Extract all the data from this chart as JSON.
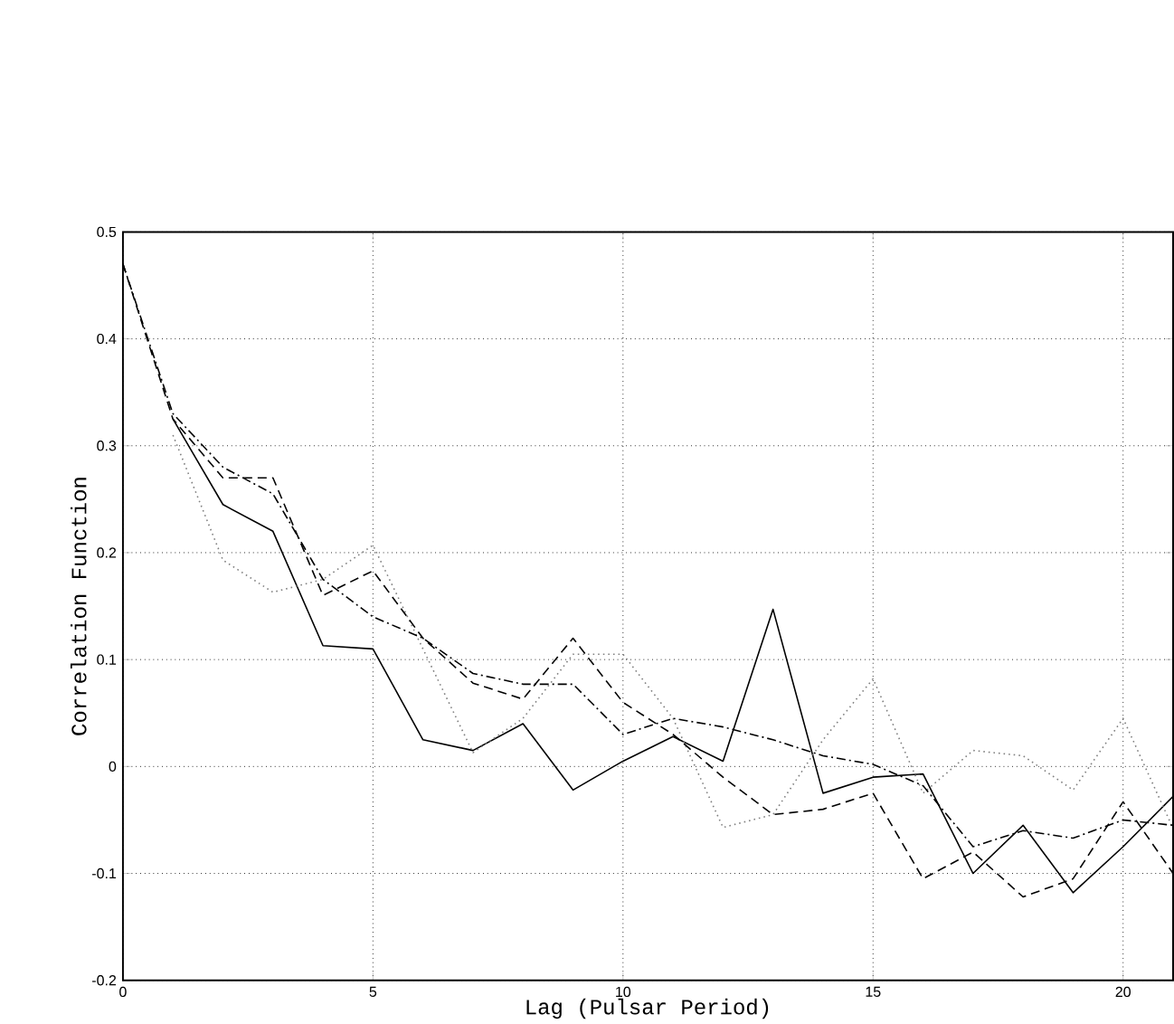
{
  "chart_data": {
    "type": "line",
    "xlabel": "Lag (Pulsar Period)",
    "ylabel": "Correlation Function",
    "xlim": [
      0,
      21
    ],
    "ylim": [
      -0.2,
      0.5
    ],
    "xticks": [
      0,
      5,
      10,
      15,
      20
    ],
    "yticks": [
      -0.2,
      -0.1,
      0,
      0.1,
      0.2,
      0.3,
      0.4,
      0.5
    ],
    "grid": true,
    "marker": "none",
    "series": [
      {
        "color": "#000000",
        "line_style": "solid",
        "x": [
          1,
          2,
          3,
          4,
          5,
          6,
          7,
          8,
          9,
          10,
          11,
          12,
          13,
          14,
          15,
          16,
          17,
          18,
          19,
          20,
          21
        ],
        "values": [
          0.325,
          0.245,
          0.22,
          0.113,
          0.11,
          0.025,
          0.015,
          0.04,
          -0.022,
          0.005,
          0.028,
          0.005,
          0.147,
          -0.025,
          -0.01,
          -0.007,
          -0.1,
          -0.055,
          -0.118,
          -0.075,
          -0.028
        ]
      },
      {
        "color": "#808080",
        "line_style": "dotted",
        "x": [
          1,
          2,
          3,
          4,
          5,
          6,
          7,
          8,
          9,
          10,
          11,
          12,
          13,
          14,
          15,
          16,
          17,
          18,
          19,
          20,
          21
        ],
        "values": [
          0.31,
          0.193,
          0.163,
          0.175,
          0.207,
          0.11,
          0.013,
          0.045,
          0.105,
          0.105,
          0.045,
          -0.057,
          -0.045,
          0.025,
          0.082,
          -0.025,
          0.015,
          0.01,
          -0.022,
          0.045,
          -0.058
        ]
      },
      {
        "color": "#000000",
        "line_style": "dashed",
        "x": [
          0,
          1,
          2,
          3,
          4,
          5,
          6,
          7,
          8,
          9,
          10,
          11,
          12,
          13,
          14,
          15,
          16,
          17,
          18,
          19,
          20,
          21
        ],
        "values": [
          0.47,
          0.325,
          0.27,
          0.27,
          0.16,
          0.183,
          0.12,
          0.078,
          0.063,
          0.12,
          0.06,
          0.03,
          -0.01,
          -0.045,
          -0.04,
          -0.025,
          -0.105,
          -0.08,
          -0.122,
          -0.105,
          -0.033,
          -0.1
        ]
      },
      {
        "color": "#000000",
        "line_style": "dashdot",
        "x": [
          0,
          1,
          2,
          3,
          4,
          5,
          6,
          7,
          8,
          9,
          10,
          11,
          12,
          13,
          14,
          15,
          16,
          17,
          18,
          19,
          20,
          21
        ],
        "values": [
          0.47,
          0.33,
          0.28,
          0.255,
          0.175,
          0.14,
          0.12,
          0.087,
          0.077,
          0.077,
          0.03,
          0.045,
          0.037,
          0.025,
          0.01,
          0.002,
          -0.018,
          -0.075,
          -0.06,
          -0.067,
          -0.05,
          -0.055
        ]
      }
    ]
  }
}
